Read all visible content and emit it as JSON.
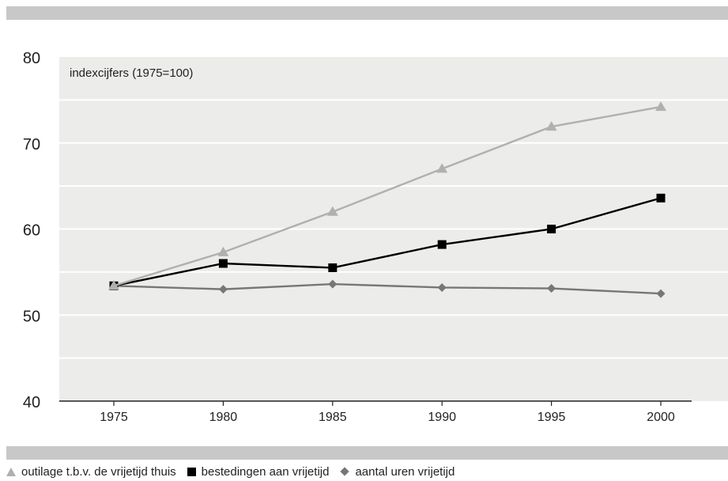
{
  "chart_data": {
    "type": "line",
    "title": "",
    "annotation": "indexcijfers (1975=100)",
    "xlabel": "",
    "ylabel": "",
    "x": [
      1975,
      1980,
      1985,
      1990,
      1995,
      2000
    ],
    "ylim": [
      40,
      80
    ],
    "yticks": [
      40,
      50,
      60,
      70,
      80
    ],
    "grid": true,
    "legend": "bottom",
    "series": [
      {
        "name": "outilage t.b.v. de vrijetijd thuis",
        "marker": "triangle",
        "color": "#b0b0b0",
        "values": [
          53.4,
          57.3,
          62.0,
          67.0,
          71.9,
          74.2
        ]
      },
      {
        "name": "bestedingen aan vrijetijd",
        "marker": "square",
        "color": "#000000",
        "values": [
          53.4,
          56.0,
          55.5,
          58.2,
          60.0,
          63.6
        ]
      },
      {
        "name": "aantal uren vrijetijd",
        "marker": "diamond",
        "color": "#777777",
        "values": [
          53.4,
          53.0,
          53.6,
          53.2,
          53.1,
          52.5
        ]
      }
    ]
  }
}
